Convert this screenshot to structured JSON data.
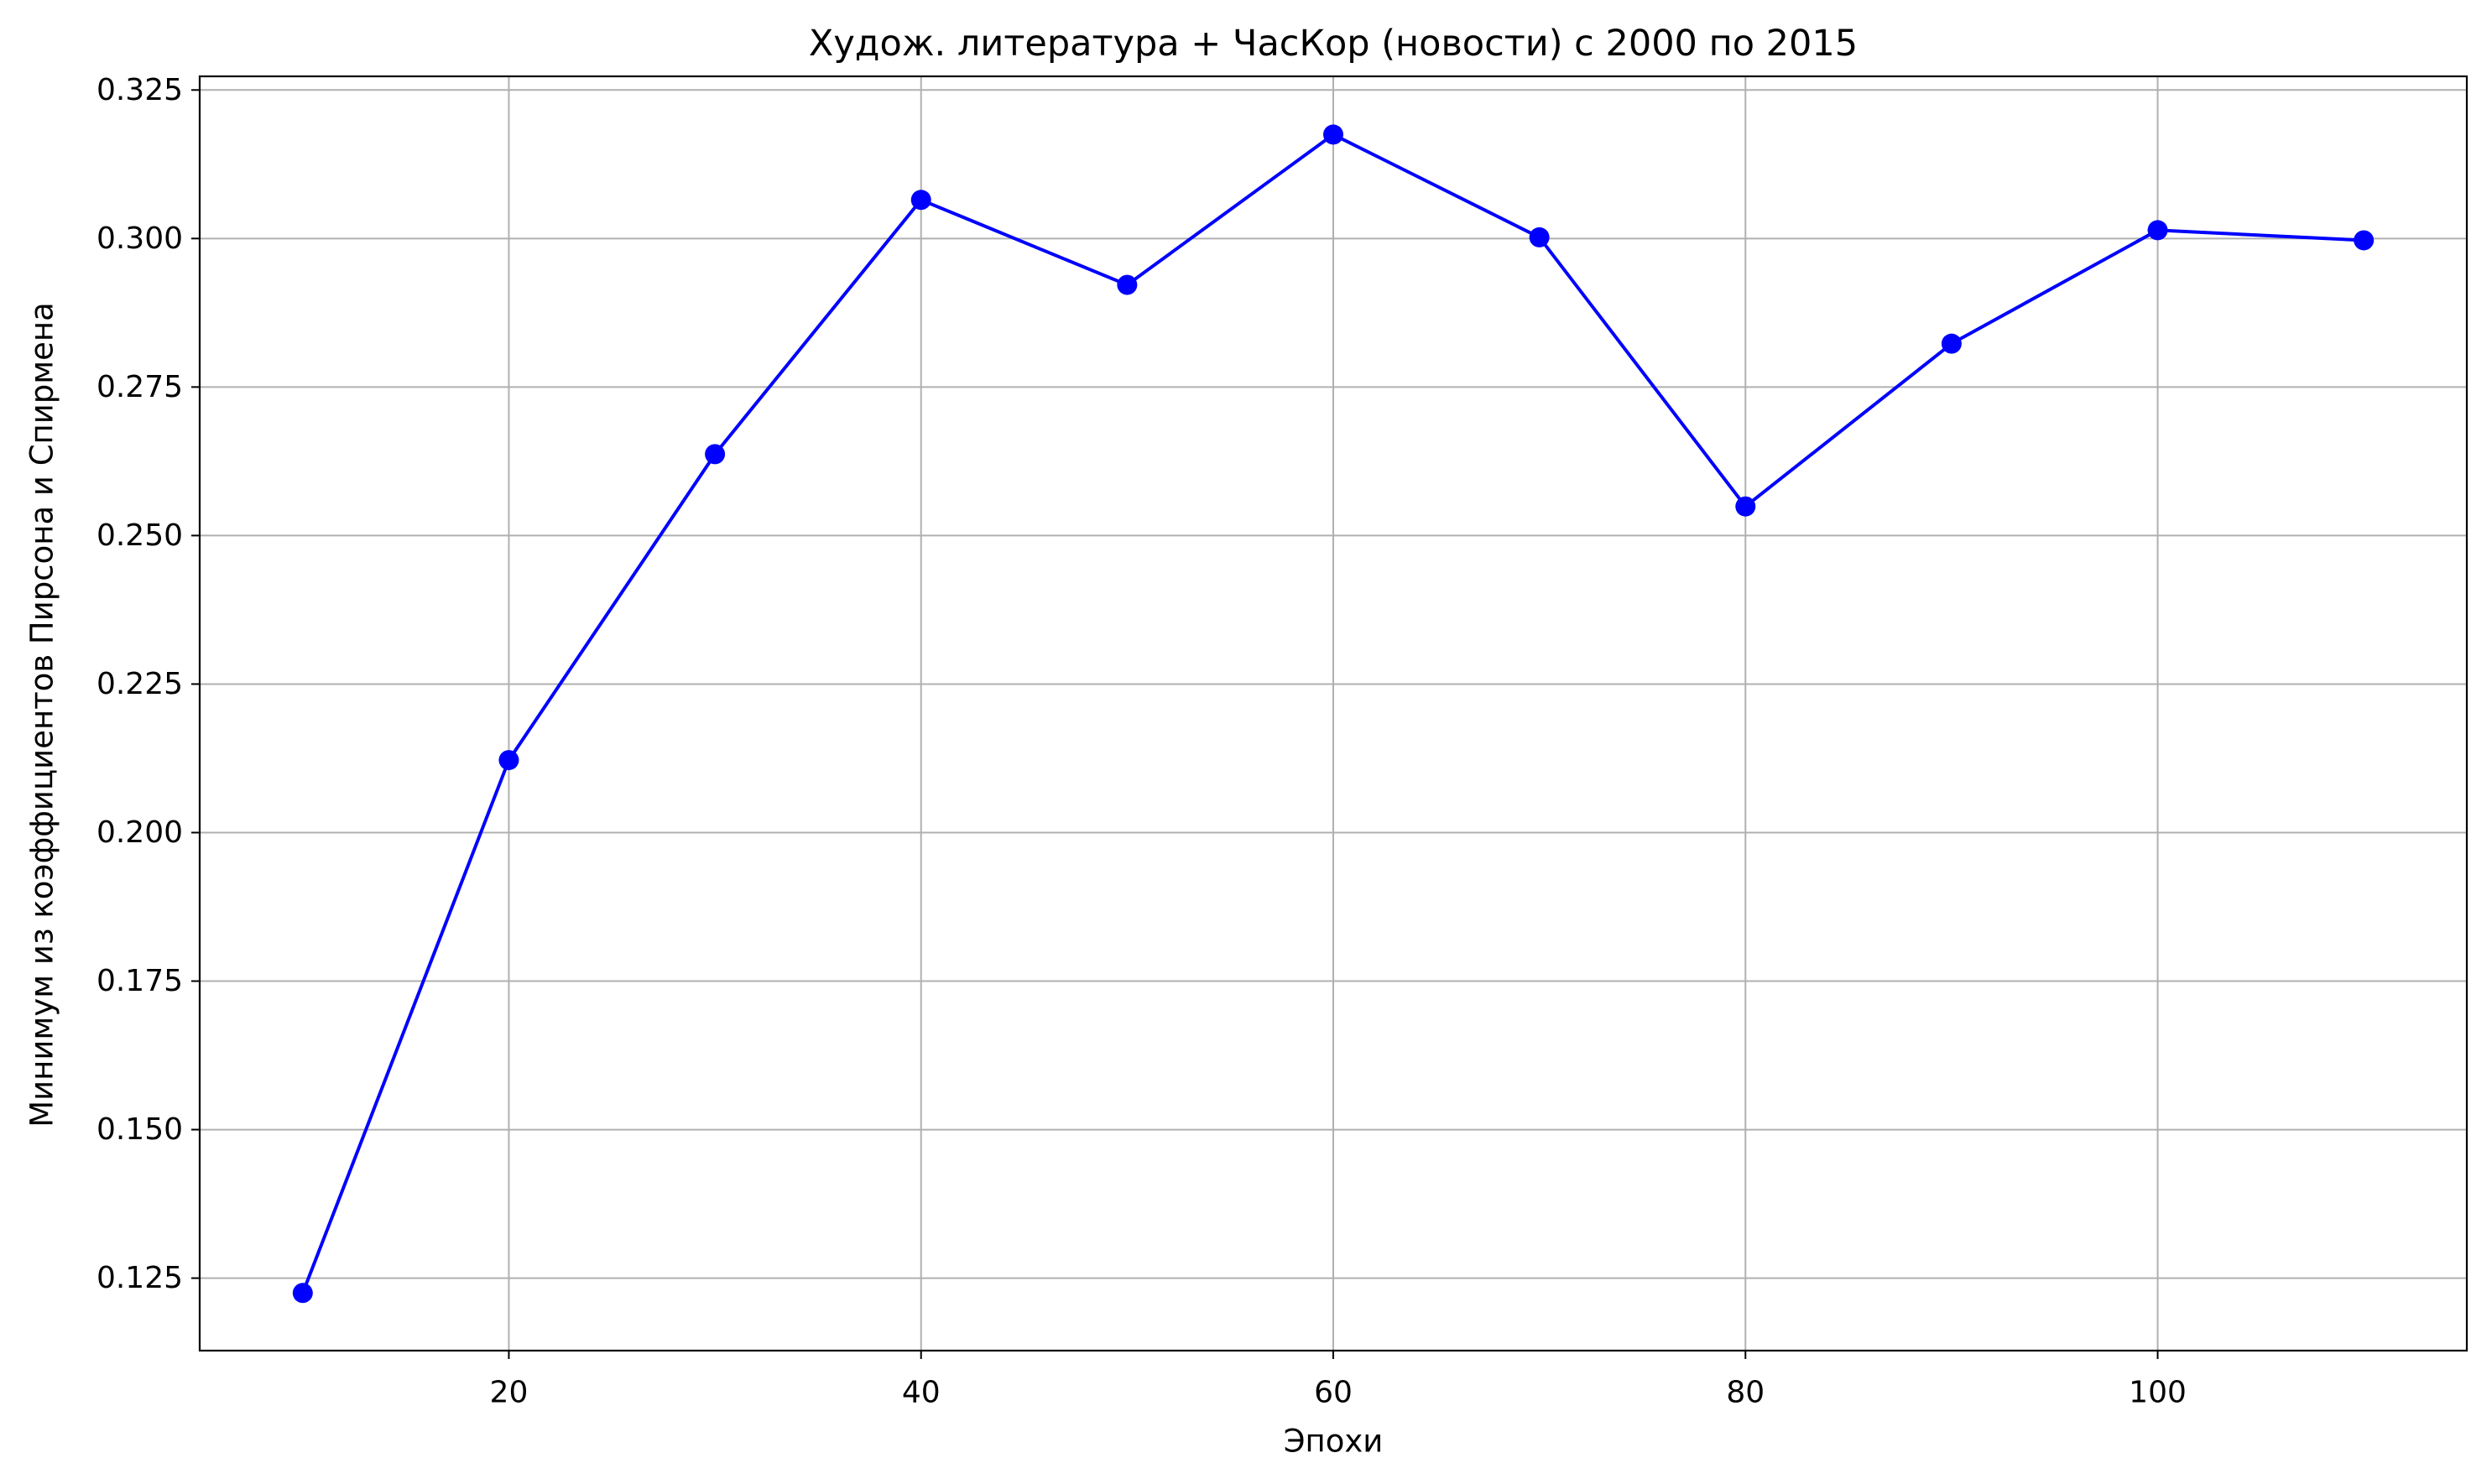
{
  "chart_data": {
    "type": "line",
    "title": "Худож. литература + ЧасКор (новости) с 2000 по 2015",
    "xlabel": "Эпохи",
    "ylabel": "Минимум из коэффициентов Пирсона и Спирмена",
    "xlim": [
      5,
      115
    ],
    "ylim": [
      0.1128,
      0.3273
    ],
    "xticks": [
      20,
      40,
      60,
      80,
      100
    ],
    "xtick_labels": [
      "20",
      "40",
      "60",
      "80",
      "100"
    ],
    "yticks": [
      0.125,
      0.15,
      0.175,
      0.2,
      0.225,
      0.25,
      0.275,
      0.3,
      0.325
    ],
    "ytick_labels": [
      "0.125",
      "0.150",
      "0.175",
      "0.200",
      "0.225",
      "0.250",
      "0.275",
      "0.300",
      "0.325"
    ],
    "grid": true,
    "series": [
      {
        "x": [
          10,
          20,
          30,
          40,
          50,
          60,
          70,
          80,
          90,
          100,
          110
        ],
        "y": [
          0.1225,
          0.2122,
          0.2637,
          0.3065,
          0.2922,
          0.3175,
          0.3002,
          0.2549,
          0.2823,
          0.3014,
          0.2997
        ],
        "color": "#0000ff",
        "marker": "circle"
      }
    ]
  }
}
